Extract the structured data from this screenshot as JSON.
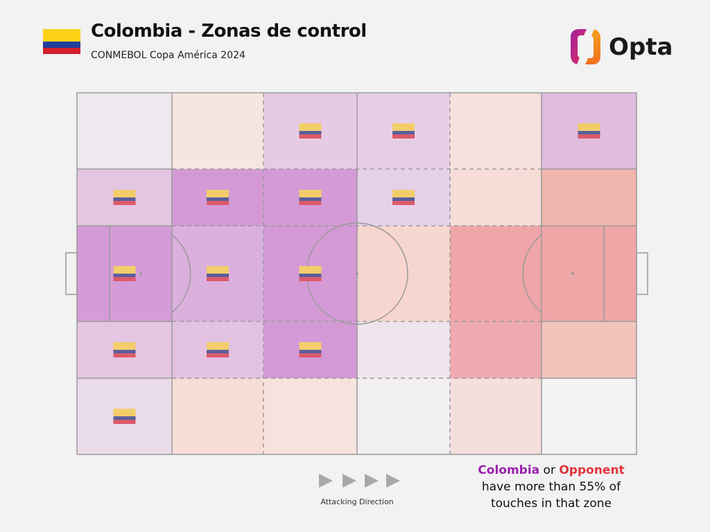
{
  "header": {
    "title": "Colombia - Zonas de control",
    "subtitle": "CONMEBOL Copa América 2024",
    "logo_text": "Opta"
  },
  "colors": {
    "colombia": "#9b1fae",
    "opponent": "#e0343c",
    "line": "#9a9a9a"
  },
  "chart_data": {
    "type": "heatmap",
    "columns": 6,
    "rows": 5,
    "cells": [
      [
        {
          "c": "#efe8ef",
          "flag": false
        },
        {
          "c": "#f6e6e0",
          "flag": false
        },
        {
          "c": "#e6cbe4",
          "flag": true
        },
        {
          "c": "#e6cfe6",
          "flag": true
        },
        {
          "c": "#f7e1dc",
          "flag": false
        },
        {
          "c": "#e0bcdf",
          "flag": true
        }
      ],
      [
        {
          "c": "#e5c6e2",
          "flag": true
        },
        {
          "c": "#d49ad6",
          "flag": true
        },
        {
          "c": "#d49ad6",
          "flag": true
        },
        {
          "c": "#e6d0e8",
          "flag": true
        },
        {
          "c": "#f6ddd7",
          "flag": false
        },
        {
          "c": "#f1b6ae",
          "flag": false
        }
      ],
      [
        {
          "c": "#d59bd8",
          "flag": true
        },
        {
          "c": "#dbb0de",
          "flag": true
        },
        {
          "c": "#d49ad6",
          "flag": true
        },
        {
          "c": "#f6d6cf",
          "flag": false
        },
        {
          "c": "#f0a5a9",
          "flag": false
        },
        {
          "c": "#efa7a8",
          "flag": false
        }
      ],
      [
        {
          "c": "#e5c6e2",
          "flag": true
        },
        {
          "c": "#e3c2e1",
          "flag": true
        },
        {
          "c": "#d49ad6",
          "flag": true
        },
        {
          "c": "#efe4ed",
          "flag": false
        },
        {
          "c": "#eeaab0",
          "flag": false
        },
        {
          "c": "#f3c4bb",
          "flag": false
        }
      ],
      [
        {
          "c": "#eadbe9",
          "flag": true
        },
        {
          "c": "#f6ddd6",
          "flag": false
        },
        {
          "c": "#f6e3dd",
          "flag": false
        },
        {
          "c": "#f1eff1",
          "flag": false
        },
        {
          "c": "#f5dfdc",
          "flag": false
        },
        {
          "c": "#f3f3f3",
          "flag": false
        }
      ]
    ],
    "attacking_direction": "Attacking Direction",
    "legend": {
      "team": "Colombia",
      "or": "or",
      "opponent": "Opponent",
      "line1": "have more than 55% of",
      "line2": "touches in that zone"
    }
  }
}
